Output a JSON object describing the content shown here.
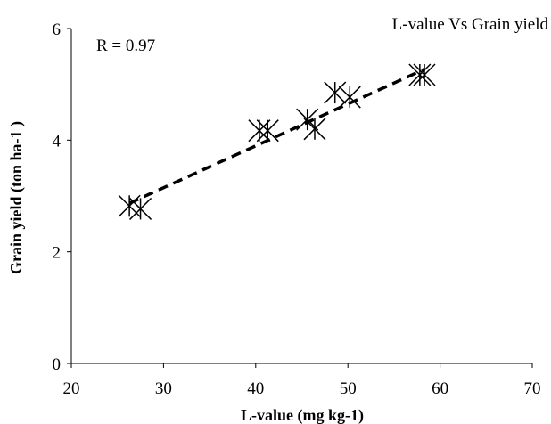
{
  "chart_data": {
    "type": "scatter",
    "title": "L-value Vs Grain yield",
    "annotation": "R = 0.97",
    "xlabel": "L-value (mg kg-1)",
    "ylabel": "Grain yield (ton ha-1 )",
    "xlim": [
      20,
      70
    ],
    "ylim": [
      0,
      6
    ],
    "xticks": [
      20,
      30,
      40,
      50,
      60,
      70
    ],
    "yticks": [
      0,
      2,
      4,
      6
    ],
    "x_tick_labels": [
      "20",
      "30",
      "40",
      "50",
      "60",
      "70"
    ],
    "y_tick_labels": [
      "0",
      "2",
      "4",
      "6"
    ],
    "grid": false,
    "marker": "asterisk",
    "series": [
      {
        "points": [
          {
            "x": 26.3,
            "y": 2.82
          },
          {
            "x": 27.5,
            "y": 2.77
          },
          {
            "x": 40.4,
            "y": 4.17
          },
          {
            "x": 41.3,
            "y": 4.17
          },
          {
            "x": 45.6,
            "y": 4.37
          },
          {
            "x": 46.4,
            "y": 4.2
          },
          {
            "x": 48.6,
            "y": 4.85
          },
          {
            "x": 50.2,
            "y": 4.77
          },
          {
            "x": 57.8,
            "y": 5.17
          },
          {
            "x": 58.3,
            "y": 5.17
          }
        ]
      }
    ],
    "trendline": {
      "style": "dashed",
      "from": {
        "x": 26.3,
        "y": 2.87
      },
      "to": {
        "x": 58.3,
        "y": 5.27
      }
    }
  }
}
